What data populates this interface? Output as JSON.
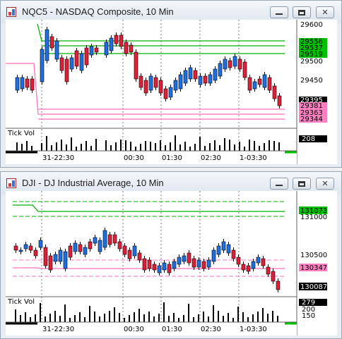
{
  "windows": [
    {
      "title": "NQC5 - NASDAQ Composite, 10 Min",
      "volume_label": "Tick Vol",
      "time_labels": [
        "31-22:30",
        "00:30",
        "01:30",
        "02:30",
        "1-03:30"
      ],
      "price_axis": {
        "ticks": [
          "29600",
          "29500",
          "29450"
        ],
        "badges": [
          {
            "text": "29556",
            "color": "#00c000"
          },
          {
            "text": "29537",
            "color": "#00c000"
          },
          {
            "text": "29519",
            "color": "#00c000"
          },
          {
            "text": "29395",
            "color": "#000000"
          },
          {
            "text": "29381",
            "color": "#ff80c0"
          },
          {
            "text": "29363",
            "color": "#ff80c0"
          },
          {
            "text": "29344",
            "color": "#ff80c0"
          }
        ]
      },
      "volume_axis": {
        "badges": [
          {
            "text": "208",
            "color": "#000000"
          }
        ]
      }
    },
    {
      "title": "DJI - DJ Industrial Average, 10 Min",
      "volume_label": "Tick Vol",
      "time_labels": [
        "31-22:30",
        "00:30",
        "01:30",
        "02:30",
        "1-03:30"
      ],
      "price_axis": {
        "ticks": [
          "131000",
          "130500"
        ],
        "badges": [
          {
            "text": "131073",
            "color": "#00c000"
          },
          {
            "text": "130347",
            "color": "#ff80c0"
          },
          {
            "text": "130087",
            "color": "#000000"
          }
        ]
      },
      "volume_axis": {
        "ticks": [
          "200",
          "150"
        ],
        "badges": [
          {
            "text": "279",
            "color": "#000000"
          }
        ]
      }
    }
  ],
  "colors": {
    "up": "#1e6fe0",
    "down": "#e0203a",
    "resistance": "#00b000",
    "support": "#ff70bf",
    "grid": "#606060"
  },
  "icons": {
    "app": "chart-app-icon",
    "minimize": "minimize-icon",
    "maximize": "maximize-icon",
    "close": "close-icon"
  }
}
